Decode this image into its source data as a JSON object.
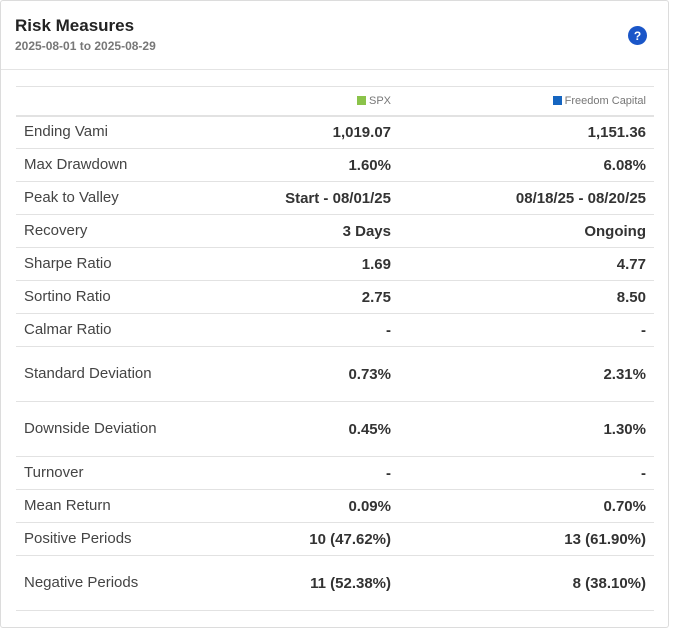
{
  "header": {
    "title": "Risk Measures",
    "date_range": "2025-08-01 to 2025-08-29",
    "help_label": "?"
  },
  "columns": [
    {
      "name": "SPX",
      "color": "#8bc34a"
    },
    {
      "name": "Freedom Capital",
      "color": "#1565c0"
    }
  ],
  "rows": [
    {
      "label": "Ending Vami",
      "spx": "1,019.07",
      "fc": "1,151.36"
    },
    {
      "label": "Max Drawdown",
      "spx": "1.60%",
      "fc": "6.08%"
    },
    {
      "label": "Peak to Valley",
      "spx": "Start - 08/01/25",
      "fc": "08/18/25 - 08/20/25"
    },
    {
      "label": "Recovery",
      "spx": "3 Days",
      "fc": "Ongoing"
    },
    {
      "label": "Sharpe Ratio",
      "spx": "1.69",
      "fc": "4.77"
    },
    {
      "label": "Sortino Ratio",
      "spx": "2.75",
      "fc": "8.50"
    },
    {
      "label": "Calmar Ratio",
      "spx": "-",
      "fc": "-"
    },
    {
      "label": "Standard Deviation",
      "spx": "0.73%",
      "fc": "2.31%"
    },
    {
      "label": "Downside Deviation",
      "spx": "0.45%",
      "fc": "1.30%"
    },
    {
      "label": "Turnover",
      "spx": "-",
      "fc": "-"
    },
    {
      "label": "Mean Return",
      "spx": "0.09%",
      "fc": "0.70%"
    },
    {
      "label": "Positive Periods",
      "spx": "10 (47.62%)",
      "fc": "13 (61.90%)"
    },
    {
      "label": "Negative Periods",
      "spx": "11 (52.38%)",
      "fc": "8 (38.10%)"
    }
  ]
}
